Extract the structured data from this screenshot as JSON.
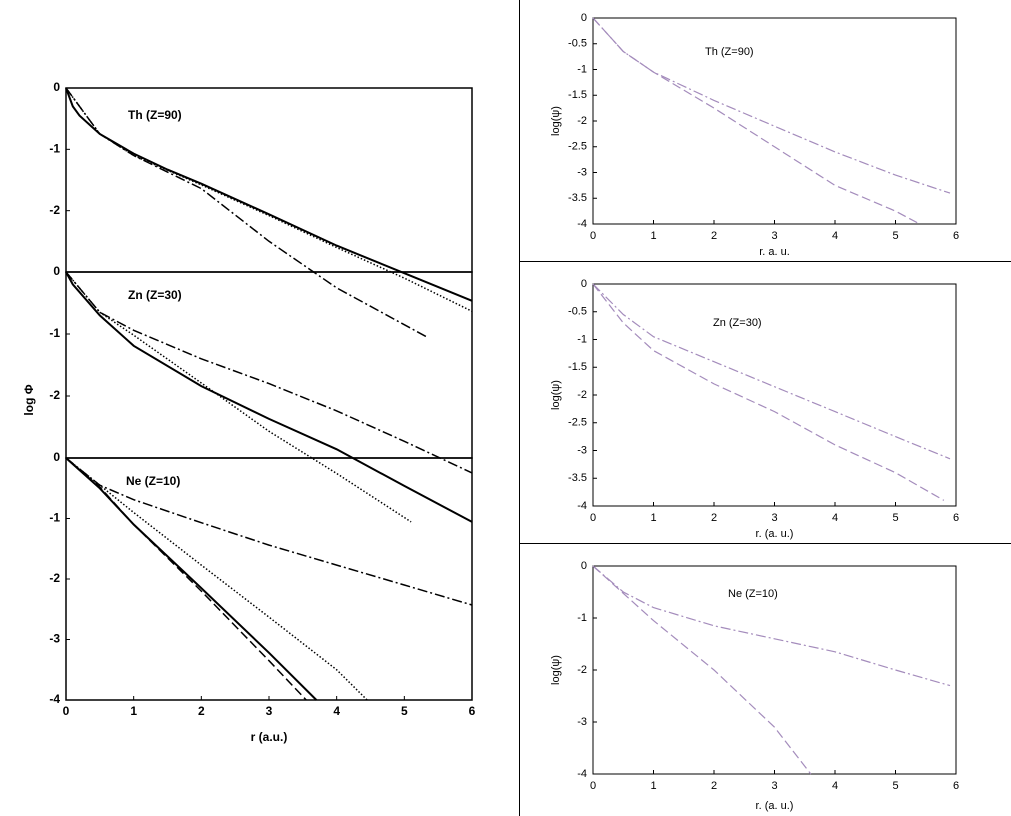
{
  "chart_data": [
    {
      "type": "line",
      "title": "Th (Z=90)",
      "xlim": [
        0,
        6
      ],
      "ylim": [
        -3,
        0
      ],
      "yticks": [
        0,
        -1,
        -2
      ],
      "series": [
        {
          "style": "solid",
          "color": "#000000",
          "x": [
            0,
            0.1,
            0.2,
            0.5,
            1,
            1.5,
            2,
            3,
            4,
            5,
            6
          ],
          "values": [
            0,
            -0.3,
            -0.45,
            -0.75,
            -1.07,
            -1.33,
            -1.56,
            -2.06,
            -2.57,
            -3.02,
            -3.47
          ]
        },
        {
          "style": "dotted",
          "color": "#000000",
          "x": [
            0,
            0.5,
            1,
            2,
            3,
            4,
            5,
            6
          ],
          "values": [
            0,
            -0.75,
            -1.1,
            -1.58,
            -2.08,
            -2.6,
            -3.1,
            -3.64
          ]
        },
        {
          "style": "dashdot",
          "color": "#000000",
          "x": [
            0,
            0.5,
            1,
            2,
            3,
            4,
            5.35
          ],
          "values": [
            0,
            -0.75,
            -1.1,
            -1.64,
            -2.5,
            -3.26,
            -4.07
          ]
        }
      ]
    },
    {
      "type": "line",
      "title": "Zn (Z=30)",
      "ylabel": "log Φ",
      "xlim": [
        0,
        6
      ],
      "ylim": [
        -3,
        0
      ],
      "yticks": [
        0,
        -1,
        -2
      ],
      "series": [
        {
          "style": "solid",
          "color": "#000000",
          "x": [
            0,
            0.1,
            0.5,
            1,
            2,
            3,
            4,
            5,
            6
          ],
          "values": [
            0,
            -0.2,
            -0.7,
            -1.19,
            -1.84,
            -2.37,
            -2.86,
            -3.45,
            -4.03
          ]
        },
        {
          "style": "dotted",
          "color": "#000000",
          "x": [
            0,
            0.5,
            1,
            2,
            3,
            4,
            5.1
          ],
          "values": [
            0,
            -0.65,
            -1.02,
            -1.79,
            -2.57,
            -3.25,
            -4.03
          ]
        },
        {
          "style": "dashdot",
          "color": "#000000",
          "x": [
            0,
            0.5,
            1,
            2,
            3,
            4,
            5,
            6
          ],
          "values": [
            0,
            -0.65,
            -0.94,
            -1.4,
            -1.8,
            -2.24,
            -2.73,
            -3.24
          ]
        }
      ]
    },
    {
      "type": "line",
      "title": "Ne (Z=10)",
      "xlabel": "r (a.u.)",
      "xlim": [
        0,
        6
      ],
      "ylim": [
        -4,
        0
      ],
      "xticks": [
        0,
        1,
        2,
        3,
        4,
        5,
        6
      ],
      "yticks": [
        0,
        -1,
        -2,
        -3,
        -4
      ],
      "series": [
        {
          "style": "solid",
          "color": "#000000",
          "x": [
            0,
            0.5,
            1,
            2,
            3,
            3.7
          ],
          "values": [
            0,
            -0.5,
            -1.1,
            -2.15,
            -3.22,
            -4
          ]
        },
        {
          "style": "dashed",
          "color": "#000000",
          "x": [
            0,
            0.5,
            1,
            2,
            3,
            3.55
          ],
          "values": [
            0,
            -0.48,
            -1.1,
            -2.2,
            -3.35,
            -4
          ]
        },
        {
          "style": "dotted",
          "color": "#000000",
          "x": [
            0,
            0.5,
            1,
            2,
            3,
            4,
            4.45
          ],
          "values": [
            0,
            -0.45,
            -0.9,
            -1.77,
            -2.63,
            -3.5,
            -4
          ]
        },
        {
          "style": "dashdot",
          "color": "#000000",
          "x": [
            0,
            0.5,
            1,
            2,
            3,
            4,
            5,
            6
          ],
          "values": [
            0,
            -0.45,
            -0.69,
            -1.07,
            -1.44,
            -1.77,
            -2.1,
            -2.43
          ]
        }
      ]
    },
    {
      "type": "line",
      "title": "Th (Z=90)",
      "xlabel": "r. a. u.",
      "ylabel": "log(ψ)",
      "xlim": [
        0,
        6
      ],
      "ylim": [
        -4,
        0
      ],
      "xticks": [
        0,
        1,
        2,
        3,
        4,
        5,
        6
      ],
      "yticks": [
        0,
        -0.5,
        -1,
        -1.5,
        -2,
        -2.5,
        -3,
        -3.5,
        -4
      ],
      "series": [
        {
          "style": "dashdot",
          "color": "#a48cbc",
          "x": [
            0,
            0.5,
            1,
            2,
            3,
            4,
            5,
            5.9
          ],
          "values": [
            0,
            -0.65,
            -1.05,
            -1.6,
            -2.1,
            -2.6,
            -3.05,
            -3.4
          ]
        },
        {
          "style": "dashed",
          "color": "#a48cbc",
          "x": [
            0,
            0.5,
            1,
            2,
            3,
            4,
            5,
            5.4
          ],
          "values": [
            0,
            -0.65,
            -1.05,
            -1.75,
            -2.5,
            -3.25,
            -3.75,
            -4
          ]
        }
      ]
    },
    {
      "type": "line",
      "title": "Zn (Z=30)",
      "xlabel": "r. (a. u.)",
      "ylabel": "log(ψ)",
      "xlim": [
        0,
        6
      ],
      "ylim": [
        -4,
        0
      ],
      "xticks": [
        0,
        1,
        2,
        3,
        4,
        5,
        6
      ],
      "yticks": [
        0,
        -0.5,
        -1,
        -1.5,
        -2,
        -2.5,
        -3,
        -3.5,
        -4
      ],
      "series": [
        {
          "style": "dashdot",
          "color": "#a48cbc",
          "x": [
            0,
            0.5,
            1,
            2,
            3,
            4,
            5,
            5.9
          ],
          "values": [
            0,
            -0.55,
            -0.95,
            -1.4,
            -1.85,
            -2.3,
            -2.75,
            -3.15
          ]
        },
        {
          "style": "dashed",
          "color": "#a48cbc",
          "x": [
            0,
            0.5,
            1,
            2,
            3,
            4,
            5,
            5.8
          ],
          "values": [
            0,
            -0.7,
            -1.2,
            -1.8,
            -2.3,
            -2.9,
            -3.4,
            -3.9
          ]
        }
      ]
    },
    {
      "type": "line",
      "title": "Ne (Z=10)",
      "xlabel": "r. (a. u.)",
      "ylabel": "log(ψ)",
      "xlim": [
        0,
        6
      ],
      "ylim": [
        -4,
        0
      ],
      "xticks": [
        0,
        1,
        2,
        3,
        4,
        5,
        6
      ],
      "yticks": [
        0,
        -1,
        -2,
        -3,
        -4
      ],
      "series": [
        {
          "style": "dashdot",
          "color": "#a48cbc",
          "x": [
            0,
            0.5,
            1,
            2,
            3,
            4,
            5,
            5.9
          ],
          "values": [
            0,
            -0.5,
            -0.8,
            -1.15,
            -1.4,
            -1.65,
            -2.0,
            -2.3
          ]
        },
        {
          "style": "dashed",
          "color": "#a48cbc",
          "x": [
            0,
            1,
            2,
            3,
            3.6
          ],
          "values": [
            0,
            -1.05,
            -2.0,
            -3.1,
            -4
          ]
        }
      ]
    }
  ]
}
